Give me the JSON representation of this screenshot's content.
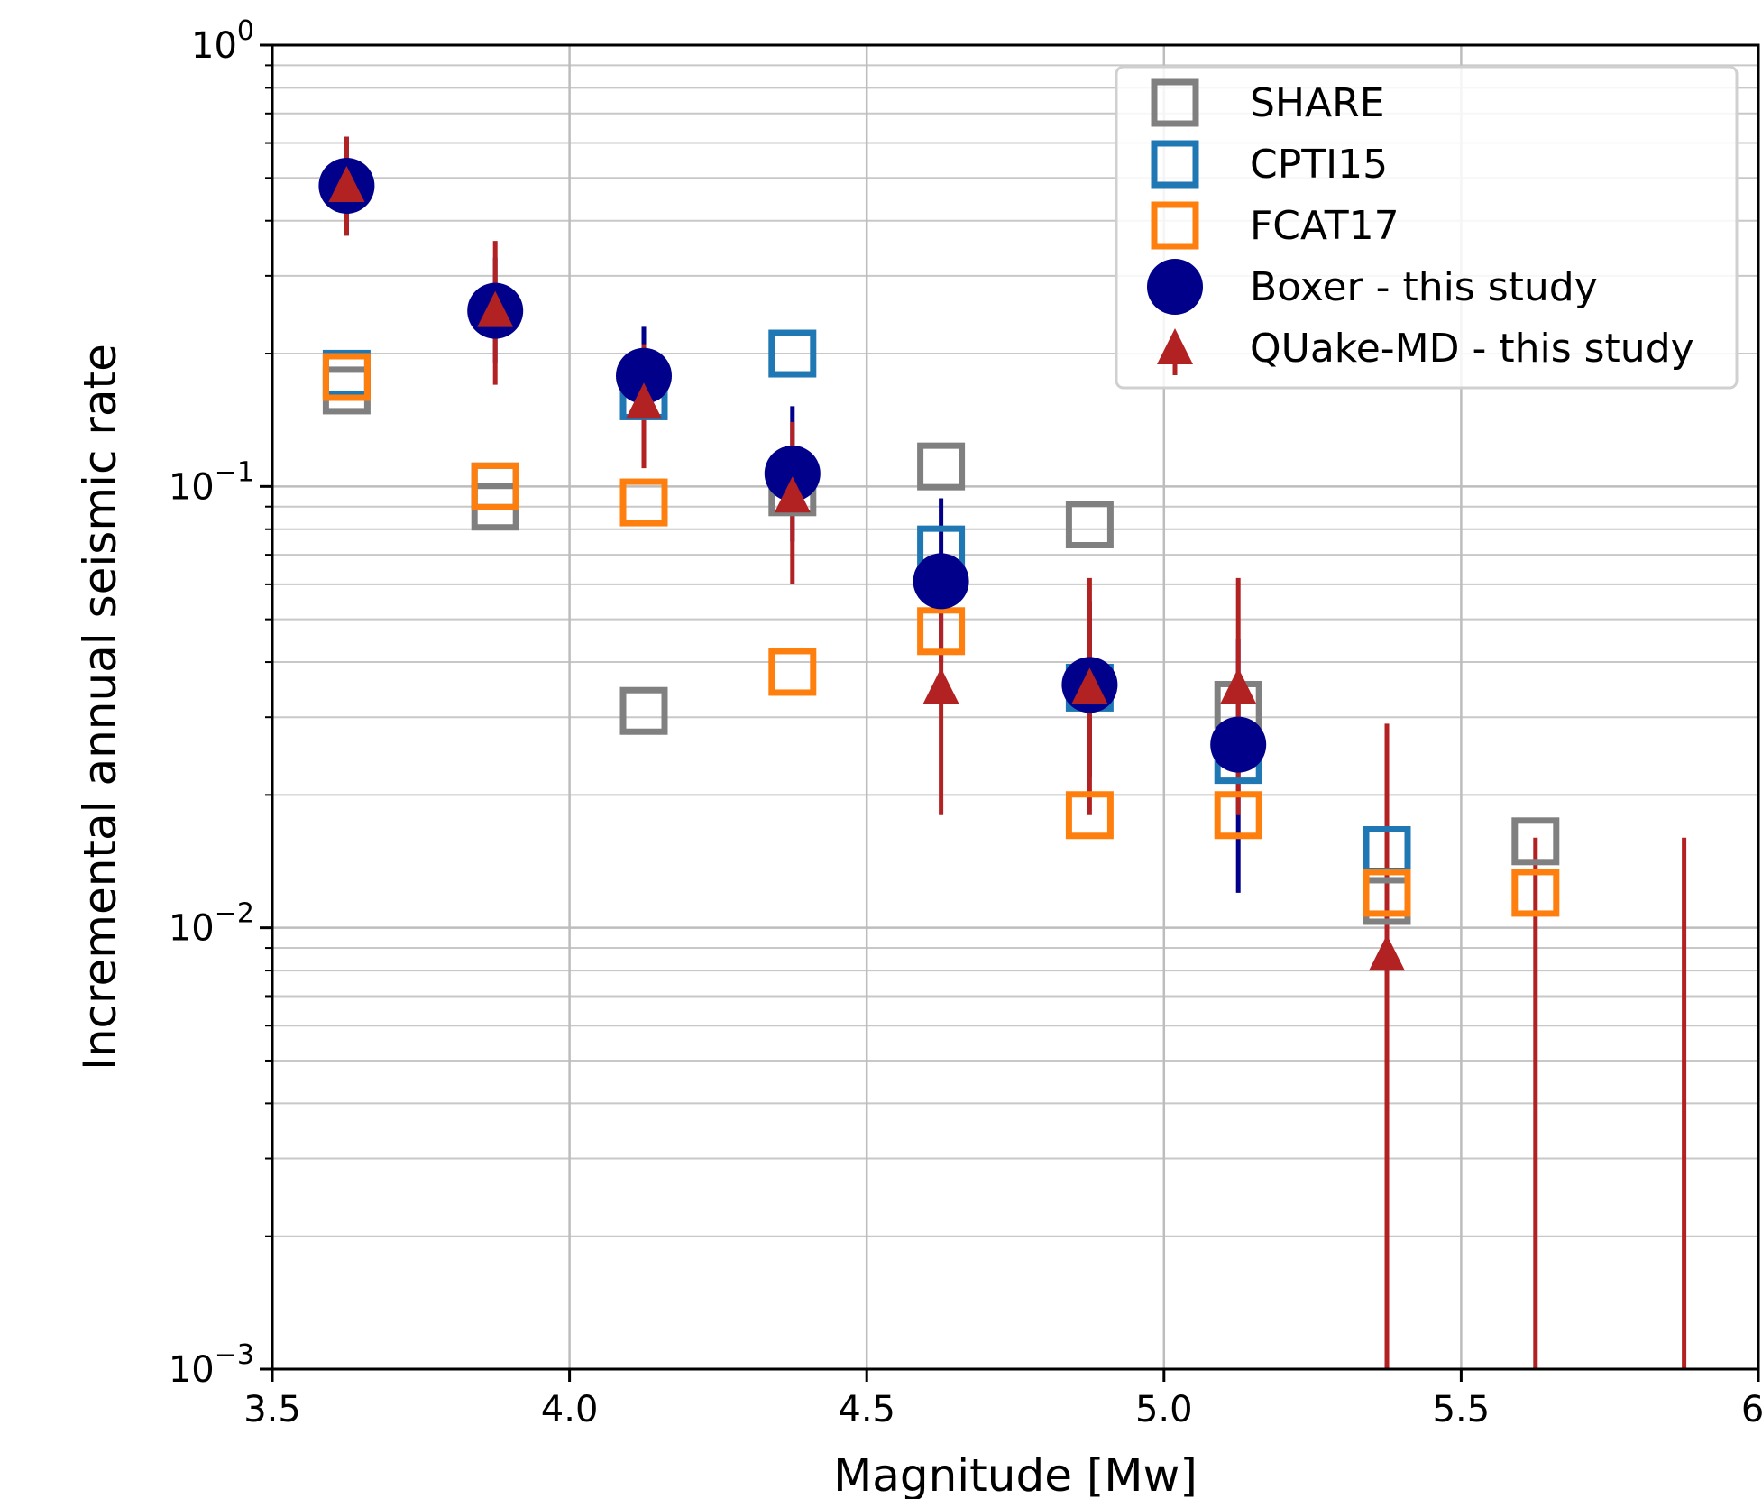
{
  "chart_data": {
    "type": "scatter",
    "xlabel": "Magnitude [Mw]",
    "ylabel": "Incremental annual seismic rate",
    "xlim": [
      3.5,
      6.0
    ],
    "ylim": [
      0.001,
      1
    ],
    "yscale": "log",
    "grid": true,
    "legend_position": "top-right",
    "x_ticks": [
      {
        "value": 3.5,
        "label": "3.5"
      },
      {
        "value": 4.0,
        "label": "4.0"
      },
      {
        "value": 4.5,
        "label": "4.5"
      },
      {
        "value": 5.0,
        "label": "5.0"
      },
      {
        "value": 5.5,
        "label": "5.5"
      },
      {
        "value": 6.0,
        "label": "6."
      }
    ],
    "y_ticks": [
      {
        "value": 1,
        "base": "10",
        "exp": "0"
      },
      {
        "value": 0.1,
        "base": "10",
        "exp": "−1"
      },
      {
        "value": 0.01,
        "base": "10",
        "exp": "−2"
      },
      {
        "value": 0.001,
        "base": "10",
        "exp": "−3"
      }
    ],
    "series": [
      {
        "name": "SHARE",
        "marker": "square-open",
        "color": "#808080",
        "points": [
          {
            "x": 3.625,
            "y": 0.165
          },
          {
            "x": 3.875,
            "y": 0.09
          },
          {
            "x": 4.125,
            "y": 0.031
          },
          {
            "x": 4.375,
            "y": 0.097
          },
          {
            "x": 4.625,
            "y": 0.111
          },
          {
            "x": 4.875,
            "y": 0.082
          },
          {
            "x": 5.125,
            "y": 0.032
          },
          {
            "x": 5.375,
            "y": 0.0115
          },
          {
            "x": 5.625,
            "y": 0.0157
          }
        ]
      },
      {
        "name": "CPTI15",
        "marker": "square-open",
        "color": "#1f77b4",
        "points": [
          {
            "x": 3.625,
            "y": 0.18
          },
          {
            "x": 3.875,
            "y": 0.1
          },
          {
            "x": 4.125,
            "y": 0.16
          },
          {
            "x": 4.375,
            "y": 0.2
          },
          {
            "x": 4.625,
            "y": 0.072
          },
          {
            "x": 4.875,
            "y": 0.035
          },
          {
            "x": 5.125,
            "y": 0.024
          },
          {
            "x": 5.375,
            "y": 0.015
          }
        ]
      },
      {
        "name": "FCAT17",
        "marker": "square-open",
        "color": "#ff7f0e",
        "points": [
          {
            "x": 3.625,
            "y": 0.177
          },
          {
            "x": 3.875,
            "y": 0.1
          },
          {
            "x": 4.125,
            "y": 0.092
          },
          {
            "x": 4.375,
            "y": 0.038
          },
          {
            "x": 4.625,
            "y": 0.047
          },
          {
            "x": 4.875,
            "y": 0.018
          },
          {
            "x": 5.125,
            "y": 0.018
          },
          {
            "x": 5.375,
            "y": 0.012
          },
          {
            "x": 5.625,
            "y": 0.012
          }
        ]
      },
      {
        "name": "Boxer - this study",
        "marker": "circle",
        "color": "#00008b",
        "points": [
          {
            "x": 3.625,
            "y": 0.48,
            "ylow": 0.37,
            "yhigh": 0.62
          },
          {
            "x": 3.875,
            "y": 0.25,
            "ylow": 0.19,
            "yhigh": 0.33
          },
          {
            "x": 4.125,
            "y": 0.178,
            "ylow": 0.13,
            "yhigh": 0.23
          },
          {
            "x": 4.375,
            "y": 0.107,
            "ylow": 0.075,
            "yhigh": 0.152
          },
          {
            "x": 4.625,
            "y": 0.061,
            "ylow": 0.04,
            "yhigh": 0.094
          },
          {
            "x": 4.875,
            "y": 0.0355,
            "ylow": 0.022,
            "yhigh": 0.055
          },
          {
            "x": 5.125,
            "y": 0.026,
            "ylow": 0.012,
            "yhigh": 0.045
          },
          {
            "x": 5.375,
            "ylow": 0.001,
            "yhigh": 0.0015
          }
        ]
      },
      {
        "name": "QUake-MD - this study",
        "marker": "triangle",
        "color": "#b22222",
        "points": [
          {
            "x": 3.625,
            "y": 0.48,
            "ylow": 0.37,
            "yhigh": 0.62
          },
          {
            "x": 3.875,
            "y": 0.25,
            "ylow": 0.17,
            "yhigh": 0.36
          },
          {
            "x": 4.125,
            "y": 0.155,
            "ylow": 0.11,
            "yhigh": 0.21
          },
          {
            "x": 4.375,
            "y": 0.095,
            "ylow": 0.06,
            "yhigh": 0.14
          },
          {
            "x": 4.625,
            "y": 0.035,
            "ylow": 0.018,
            "yhigh": 0.06
          },
          {
            "x": 4.875,
            "y": 0.035,
            "ylow": 0.018,
            "yhigh": 0.062
          },
          {
            "x": 5.125,
            "y": 0.035,
            "ylow": 0.018,
            "yhigh": 0.062
          },
          {
            "x": 5.375,
            "y": 0.0087,
            "ylow": 0.001,
            "yhigh": 0.029
          },
          {
            "x": 5.625,
            "ylow": 0.001,
            "yhigh": 0.016
          },
          {
            "x": 5.875,
            "ylow": 0.001,
            "yhigh": 0.016
          }
        ]
      }
    ]
  }
}
